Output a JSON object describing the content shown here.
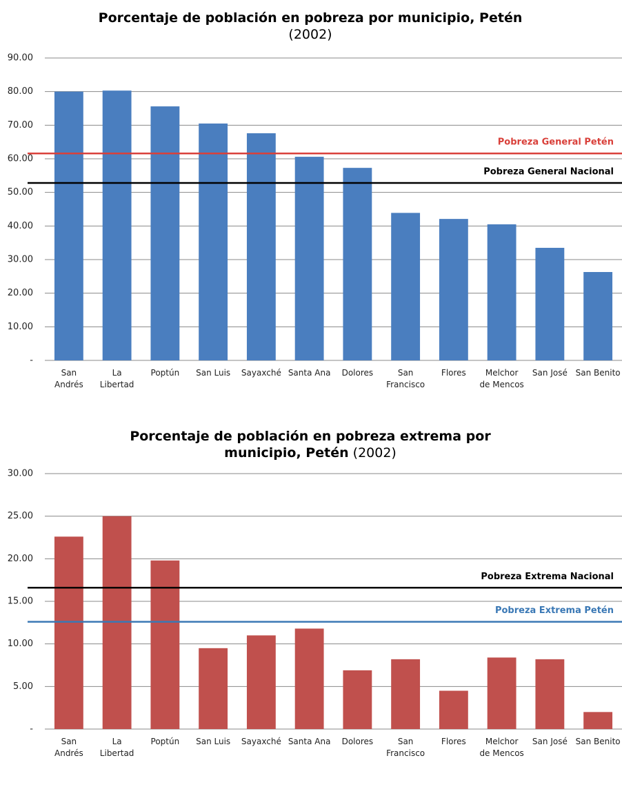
{
  "chart_data": [
    {
      "type": "bar",
      "title": "Porcentaje de población en pobreza por municipio, Petén",
      "subtitle": "(2002)",
      "categories": [
        "San Andrés",
        "La Libertad",
        "Poptún",
        "San Luis",
        "Sayaxché",
        "Santa Ana",
        "Dolores",
        "San Francisco",
        "Flores",
        "Melchor de Mencos",
        "San José",
        "San Benito"
      ],
      "values": [
        80.0,
        80.3,
        75.6,
        70.5,
        67.6,
        60.6,
        57.3,
        43.9,
        42.1,
        40.5,
        33.5,
        26.3
      ],
      "color": "#4a7ebf",
      "ylim": [
        0,
        90
      ],
      "yticks": [
        {
          "value": 0,
          "label": "-"
        },
        {
          "value": 10,
          "label": "10.00"
        },
        {
          "value": 20,
          "label": "20.00"
        },
        {
          "value": 30,
          "label": "30.00"
        },
        {
          "value": 40,
          "label": "40.00"
        },
        {
          "value": 50,
          "label": "50.00"
        },
        {
          "value": 60,
          "label": "60.00"
        },
        {
          "value": 70,
          "label": "70.00"
        },
        {
          "value": 80,
          "label": "80.00"
        },
        {
          "value": 90,
          "label": "90.00"
        }
      ],
      "grid": true,
      "reference_lines": [
        {
          "label": "Pobreza General Petén",
          "value": 61.6,
          "color": "#d9403a"
        },
        {
          "label": "Pobreza General Nacional",
          "value": 52.8,
          "color": "#000000"
        }
      ]
    },
    {
      "type": "bar",
      "title": "Porcentaje de población en pobreza extrema por municipio, Petén",
      "subtitle": "(2002)",
      "categories": [
        "San Andrés",
        "La Libertad",
        "Poptún",
        "San Luis",
        "Sayaxché",
        "Santa Ana",
        "Dolores",
        "San Francisco",
        "Flores",
        "Melchor de Mencos",
        "San José",
        "San Benito"
      ],
      "values": [
        22.6,
        25.0,
        19.8,
        9.5,
        11.0,
        11.8,
        6.9,
        8.2,
        4.5,
        8.4,
        8.2,
        2.0
      ],
      "color": "#c0504d",
      "ylim": [
        0,
        30
      ],
      "yticks": [
        {
          "value": 0,
          "label": "-"
        },
        {
          "value": 5,
          "label": "5.00"
        },
        {
          "value": 10,
          "label": "10.00"
        },
        {
          "value": 15,
          "label": "15.00"
        },
        {
          "value": 20,
          "label": "20.00"
        },
        {
          "value": 25,
          "label": "25.00"
        },
        {
          "value": 30,
          "label": "30.00"
        }
      ],
      "grid": true,
      "reference_lines": [
        {
          "label": "Pobreza Extrema Nacional",
          "value": 16.6,
          "color": "#000000"
        },
        {
          "label": "Pobreza Extrema Petén",
          "value": 12.6,
          "color": "#3a78b5"
        }
      ]
    }
  ]
}
